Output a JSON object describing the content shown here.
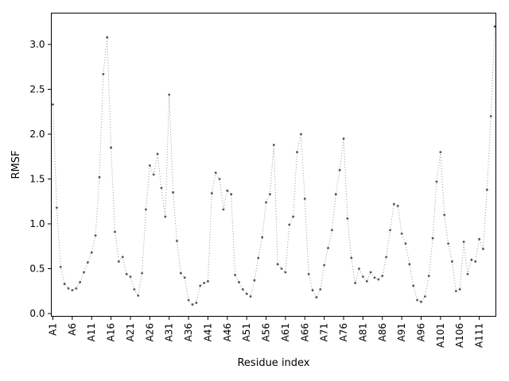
{
  "page": {
    "background": "#ffffff"
  },
  "chart_data": {
    "type": "line",
    "title": "",
    "xlabel": "Residue index",
    "ylabel": "RMSF",
    "legend": null,
    "grid": false,
    "line_style": "dotted",
    "marker": "point",
    "line_color": "#999999",
    "marker_color": "#555555",
    "axis_color": "#000000",
    "x_tick_every": 5,
    "x_tick_rotation_deg": 90,
    "ylim": [
      -0.03,
      3.36
    ],
    "y_ticks": [
      0.0,
      0.5,
      1.0,
      1.5,
      2.0,
      2.5,
      3.0
    ],
    "y_tick_labels": [
      "0.0",
      "0.5",
      "1.0",
      "1.5",
      "2.0",
      "2.5",
      "3.0"
    ],
    "x_tick_labels_shown": [
      "A1",
      "A6",
      "A11",
      "A16",
      "A21",
      "A26",
      "A31",
      "A36",
      "A41",
      "A46",
      "A51",
      "A56",
      "A61",
      "A66",
      "A71",
      "A76",
      "A81",
      "A86",
      "A91",
      "A96",
      "A101",
      "A106",
      "A111"
    ],
    "categories": [
      "A1",
      "A2",
      "A3",
      "A4",
      "A5",
      "A6",
      "A7",
      "A8",
      "A9",
      "A10",
      "A11",
      "A12",
      "A13",
      "A14",
      "A15",
      "A16",
      "A17",
      "A18",
      "A19",
      "A20",
      "A21",
      "A22",
      "A23",
      "A24",
      "A25",
      "A26",
      "A27",
      "A28",
      "A29",
      "A30",
      "A31",
      "A32",
      "A33",
      "A34",
      "A35",
      "A36",
      "A37",
      "A38",
      "A39",
      "A40",
      "A41",
      "A42",
      "A43",
      "A44",
      "A45",
      "A46",
      "A47",
      "A48",
      "A49",
      "A50",
      "A51",
      "A52",
      "A53",
      "A54",
      "A55",
      "A56",
      "A57",
      "A58",
      "A59",
      "A60",
      "A61",
      "A62",
      "A63",
      "A64",
      "A65",
      "A66",
      "A67",
      "A68",
      "A69",
      "A70",
      "A71",
      "A72",
      "A73",
      "A74",
      "A75",
      "A76",
      "A77",
      "A78",
      "A79",
      "A80",
      "A81",
      "A82",
      "A83",
      "A84",
      "A85",
      "A86",
      "A87",
      "A88",
      "A89",
      "A90",
      "A91",
      "A92",
      "A93",
      "A94",
      "A95",
      "A96",
      "A97",
      "A98",
      "A99",
      "A100",
      "A101",
      "A102",
      "A103",
      "A104",
      "A105",
      "A106",
      "A107",
      "A108",
      "A109",
      "A110",
      "A111",
      "A112",
      "A113",
      "A114",
      "A115"
    ],
    "values": [
      2.33,
      1.18,
      0.52,
      0.33,
      0.28,
      0.26,
      0.28,
      0.35,
      0.46,
      0.57,
      0.68,
      0.87,
      1.52,
      2.67,
      3.08,
      1.85,
      0.91,
      0.58,
      0.63,
      0.44,
      0.41,
      0.27,
      0.2,
      0.45,
      1.16,
      1.65,
      1.55,
      1.78,
      1.4,
      1.08,
      2.44,
      1.35,
      0.81,
      0.45,
      0.4,
      0.15,
      0.1,
      0.12,
      0.31,
      0.34,
      0.36,
      1.34,
      1.57,
      1.5,
      1.16,
      1.37,
      1.33,
      0.43,
      0.35,
      0.27,
      0.22,
      0.19,
      0.37,
      0.62,
      0.85,
      1.24,
      1.33,
      1.88,
      0.55,
      0.5,
      0.46,
      0.99,
      1.08,
      1.8,
      2.0,
      1.28,
      0.44,
      0.26,
      0.18,
      0.27,
      0.54,
      0.73,
      0.93,
      1.33,
      1.6,
      1.95,
      1.06,
      0.62,
      0.34,
      0.5,
      0.41,
      0.36,
      0.46,
      0.4,
      0.38,
      0.42,
      0.63,
      0.93,
      1.22,
      1.2,
      0.89,
      0.78,
      0.55,
      0.31,
      0.15,
      0.13,
      0.19,
      0.42,
      0.84,
      1.47,
      1.8,
      1.1,
      0.78,
      0.58,
      0.25,
      0.27,
      0.8,
      0.44,
      0.6,
      0.58,
      0.83,
      0.72,
      1.38,
      2.2,
      3.2
    ]
  }
}
